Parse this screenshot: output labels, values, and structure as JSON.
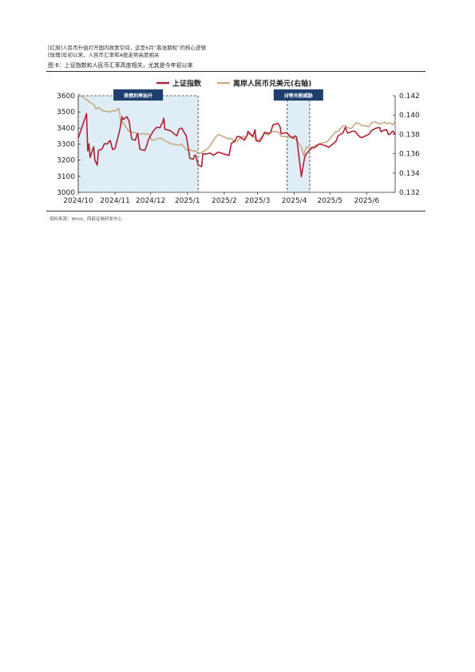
{
  "header": {
    "line1": "[红旗]人民币升值打开国内政策空间，这是6月“看涨期权”的核心逻辑",
    "line2": "[玫瑰]年初以来，人民币汇率和A股走势高度相关"
  },
  "figure": {
    "title": "图 6：上证指数和人民币汇率高度相关，尤其是今年初以来",
    "source": "资料来源：Wind，西部证券研发中心"
  },
  "chart_data": {
    "type": "line",
    "x_ticks": [
      "2024/10",
      "2024/11",
      "2024/12",
      "2025/1",
      "2025/2",
      "2025/3",
      "2025/4",
      "2025/5",
      "2025/6"
    ],
    "x_range": [
      "2024-10-01",
      "2025-06-25"
    ],
    "y_left": {
      "ticks": [
        "3000",
        "3100",
        "3200",
        "3300",
        "3400",
        "3500",
        "3600"
      ],
      "range": [
        3000,
        3600
      ]
    },
    "y_right": {
      "ticks": [
        "0.132",
        "0.134",
        "0.136",
        "0.138",
        "0.140",
        "0.142"
      ],
      "range": [
        0.132,
        0.142
      ]
    },
    "annotations": [
      {
        "label": "美债利率抬升",
        "start": "2024-10-01",
        "end": "2025-01-10",
        "color": "#dfeef6"
      },
      {
        "label": "对等关税威胁",
        "start": "2025-03-26",
        "end": "2025-04-14",
        "color": "#dfeef6"
      }
    ],
    "series": [
      {
        "name": "上证指数",
        "axis": "left",
        "color": "#b22034",
        "points": [
          [
            "2024-10-01",
            3336
          ],
          [
            "2024-10-08",
            3489
          ],
          [
            "2024-10-09",
            3258
          ],
          [
            "2024-10-10",
            3301
          ],
          [
            "2024-10-11",
            3217
          ],
          [
            "2024-10-14",
            3284
          ],
          [
            "2024-10-15",
            3201
          ],
          [
            "2024-10-17",
            3169
          ],
          [
            "2024-10-18",
            3261
          ],
          [
            "2024-10-21",
            3268
          ],
          [
            "2024-10-23",
            3302
          ],
          [
            "2024-10-25",
            3300
          ],
          [
            "2024-10-28",
            3322
          ],
          [
            "2024-10-30",
            3266
          ],
          [
            "2024-11-01",
            3272
          ],
          [
            "2024-11-05",
            3387
          ],
          [
            "2024-11-07",
            3470
          ],
          [
            "2024-11-08",
            3452
          ],
          [
            "2024-11-11",
            3470
          ],
          [
            "2024-11-13",
            3439
          ],
          [
            "2024-11-15",
            3331
          ],
          [
            "2024-11-18",
            3324
          ],
          [
            "2024-11-20",
            3367
          ],
          [
            "2024-11-22",
            3268
          ],
          [
            "2024-11-26",
            3260
          ],
          [
            "2024-11-28",
            3296
          ],
          [
            "2024-11-29",
            3326
          ],
          [
            "2024-12-03",
            3379
          ],
          [
            "2024-12-06",
            3404
          ],
          [
            "2024-12-09",
            3402
          ],
          [
            "2024-12-10",
            3422
          ],
          [
            "2024-12-11",
            3432
          ],
          [
            "2024-12-12",
            3461
          ],
          [
            "2024-12-13",
            3392
          ],
          [
            "2024-12-16",
            3386
          ],
          [
            "2024-12-18",
            3382
          ],
          [
            "2024-12-20",
            3368
          ],
          [
            "2024-12-23",
            3351
          ],
          [
            "2024-12-25",
            3393
          ],
          [
            "2024-12-27",
            3400
          ],
          [
            "2024-12-31",
            3351
          ],
          [
            "2025-01-02",
            3262
          ],
          [
            "2025-01-03",
            3211
          ],
          [
            "2025-01-06",
            3206
          ],
          [
            "2025-01-07",
            3229
          ],
          [
            "2025-01-08",
            3230
          ],
          [
            "2025-01-10",
            3169
          ],
          [
            "2025-01-13",
            3160
          ],
          [
            "2025-01-14",
            3240
          ],
          [
            "2025-01-16",
            3237
          ],
          [
            "2025-01-20",
            3244
          ],
          [
            "2025-01-23",
            3230
          ],
          [
            "2025-01-27",
            3250
          ],
          [
            "2025-02-05",
            3229
          ],
          [
            "2025-02-07",
            3303
          ],
          [
            "2025-02-10",
            3322
          ],
          [
            "2025-02-12",
            3346
          ],
          [
            "2025-02-14",
            3346
          ],
          [
            "2025-02-18",
            3324
          ],
          [
            "2025-02-20",
            3350
          ],
          [
            "2025-02-21",
            3379
          ],
          [
            "2025-02-25",
            3346
          ],
          [
            "2025-02-27",
            3389
          ],
          [
            "2025-02-28",
            3320
          ],
          [
            "2025-03-03",
            3316
          ],
          [
            "2025-03-05",
            3342
          ],
          [
            "2025-03-07",
            3373
          ],
          [
            "2025-03-10",
            3366
          ],
          [
            "2025-03-12",
            3371
          ],
          [
            "2025-03-14",
            3419
          ],
          [
            "2025-03-17",
            3426
          ],
          [
            "2025-03-18",
            3430
          ],
          [
            "2025-03-20",
            3408
          ],
          [
            "2025-03-21",
            3364
          ],
          [
            "2025-03-24",
            3370
          ],
          [
            "2025-03-26",
            3368
          ],
          [
            "2025-03-28",
            3351
          ],
          [
            "2025-03-31",
            3336
          ],
          [
            "2025-04-01",
            3348
          ],
          [
            "2025-04-02",
            3350
          ],
          [
            "2025-04-03",
            3342
          ],
          [
            "2025-04-07",
            3097
          ],
          [
            "2025-04-08",
            3145
          ],
          [
            "2025-04-09",
            3186
          ],
          [
            "2025-04-10",
            3223
          ],
          [
            "2025-04-11",
            3238
          ],
          [
            "2025-04-14",
            3263
          ],
          [
            "2025-04-16",
            3276
          ],
          [
            "2025-04-18",
            3277
          ],
          [
            "2025-04-22",
            3300
          ],
          [
            "2025-04-24",
            3297
          ],
          [
            "2025-04-28",
            3288
          ],
          [
            "2025-04-30",
            3279
          ],
          [
            "2025-05-06",
            3316
          ],
          [
            "2025-05-08",
            3352
          ],
          [
            "2025-05-12",
            3370
          ],
          [
            "2025-05-14",
            3404
          ],
          [
            "2025-05-16",
            3367
          ],
          [
            "2025-05-20",
            3380
          ],
          [
            "2025-05-22",
            3380
          ],
          [
            "2025-05-26",
            3346
          ],
          [
            "2025-05-28",
            3340
          ],
          [
            "2025-05-30",
            3347
          ],
          [
            "2025-06-03",
            3361
          ],
          [
            "2025-06-05",
            3384
          ],
          [
            "2025-06-09",
            3399
          ],
          [
            "2025-06-11",
            3402
          ],
          [
            "2025-06-12",
            3402
          ],
          [
            "2025-06-13",
            3377
          ],
          [
            "2025-06-16",
            3388
          ],
          [
            "2025-06-18",
            3388
          ],
          [
            "2025-06-19",
            3362
          ],
          [
            "2025-06-20",
            3359
          ],
          [
            "2025-06-23",
            3381
          ],
          [
            "2025-06-25",
            3360
          ]
        ]
      },
      {
        "name": "离岸人民币兑美元(右轴)",
        "axis": "right",
        "color": "#c9a983",
        "points": [
          [
            "2024-10-01",
            0.1422
          ],
          [
            "2024-10-03",
            0.142
          ],
          [
            "2024-10-08",
            0.1416
          ],
          [
            "2024-10-10",
            0.1414
          ],
          [
            "2024-10-14",
            0.1411
          ],
          [
            "2024-10-16",
            0.1406
          ],
          [
            "2024-10-18",
            0.1408
          ],
          [
            "2024-10-21",
            0.1405
          ],
          [
            "2024-10-23",
            0.1404
          ],
          [
            "2024-10-25",
            0.1404
          ],
          [
            "2024-10-28",
            0.1403
          ],
          [
            "2024-10-30",
            0.1405
          ],
          [
            "2024-11-01",
            0.1404
          ],
          [
            "2024-11-04",
            0.1407
          ],
          [
            "2024-11-05",
            0.1402
          ],
          [
            "2024-11-06",
            0.139
          ],
          [
            "2024-11-07",
            0.1393
          ],
          [
            "2024-11-08",
            0.1392
          ],
          [
            "2024-11-11",
            0.1386
          ],
          [
            "2024-11-13",
            0.1383
          ],
          [
            "2024-11-15",
            0.1382
          ],
          [
            "2024-11-18",
            0.1382
          ],
          [
            "2024-11-20",
            0.1381
          ],
          [
            "2024-11-22",
            0.138
          ],
          [
            "2024-11-25",
            0.1381
          ],
          [
            "2024-11-27",
            0.138
          ],
          [
            "2024-11-29",
            0.1381
          ],
          [
            "2024-12-02",
            0.1374
          ],
          [
            "2024-12-04",
            0.1374
          ],
          [
            "2024-12-06",
            0.1375
          ],
          [
            "2024-12-09",
            0.1376
          ],
          [
            "2024-12-11",
            0.1375
          ],
          [
            "2024-12-13",
            0.1373
          ],
          [
            "2024-12-16",
            0.1372
          ],
          [
            "2024-12-18",
            0.137
          ],
          [
            "2024-12-20",
            0.137
          ],
          [
            "2024-12-23",
            0.1369
          ],
          [
            "2024-12-25",
            0.1369
          ],
          [
            "2024-12-27",
            0.137
          ],
          [
            "2024-12-31",
            0.1364
          ],
          [
            "2025-01-03",
            0.1364
          ],
          [
            "2025-01-06",
            0.1363
          ],
          [
            "2025-01-08",
            0.1363
          ],
          [
            "2025-01-10",
            0.136
          ],
          [
            "2025-01-13",
            0.1361
          ],
          [
            "2025-01-15",
            0.1363
          ],
          [
            "2025-01-17",
            0.1364
          ],
          [
            "2025-01-20",
            0.1368
          ],
          [
            "2025-01-22",
            0.1372
          ],
          [
            "2025-01-24",
            0.1376
          ],
          [
            "2025-01-27",
            0.138
          ],
          [
            "2025-02-05",
            0.1375
          ],
          [
            "2025-02-07",
            0.1376
          ],
          [
            "2025-02-10",
            0.1372
          ],
          [
            "2025-02-12",
            0.1373
          ],
          [
            "2025-02-14",
            0.1376
          ],
          [
            "2025-02-17",
            0.1378
          ],
          [
            "2025-02-19",
            0.1376
          ],
          [
            "2025-02-21",
            0.138
          ],
          [
            "2025-02-24",
            0.138
          ],
          [
            "2025-02-26",
            0.1378
          ],
          [
            "2025-02-28",
            0.1374
          ],
          [
            "2025-03-03",
            0.1375
          ],
          [
            "2025-03-05",
            0.1378
          ],
          [
            "2025-03-07",
            0.1381
          ],
          [
            "2025-03-10",
            0.1379
          ],
          [
            "2025-03-12",
            0.1382
          ],
          [
            "2025-03-14",
            0.1383
          ],
          [
            "2025-03-17",
            0.1383
          ],
          [
            "2025-03-19",
            0.1382
          ],
          [
            "2025-03-21",
            0.1378
          ],
          [
            "2025-03-24",
            0.1378
          ],
          [
            "2025-03-26",
            0.1377
          ],
          [
            "2025-03-28",
            0.1377
          ],
          [
            "2025-03-31",
            0.1377
          ],
          [
            "2025-04-02",
            0.1375
          ],
          [
            "2025-04-04",
            0.1372
          ],
          [
            "2025-04-07",
            0.1367
          ],
          [
            "2025-04-08",
            0.1362
          ],
          [
            "2025-04-09",
            0.1358
          ],
          [
            "2025-04-10",
            0.1363
          ],
          [
            "2025-04-11",
            0.1367
          ],
          [
            "2025-04-14",
            0.1366
          ],
          [
            "2025-04-16",
            0.1367
          ],
          [
            "2025-04-18",
            0.1368
          ],
          [
            "2025-04-22",
            0.137
          ],
          [
            "2025-04-24",
            0.1371
          ],
          [
            "2025-04-28",
            0.1372
          ],
          [
            "2025-04-30",
            0.1374
          ],
          [
            "2025-05-06",
            0.1383
          ],
          [
            "2025-05-08",
            0.1383
          ],
          [
            "2025-05-12",
            0.1389
          ],
          [
            "2025-05-14",
            0.1389
          ],
          [
            "2025-05-16",
            0.1387
          ],
          [
            "2025-05-19",
            0.1386
          ],
          [
            "2025-05-21",
            0.1389
          ],
          [
            "2025-05-23",
            0.1392
          ],
          [
            "2025-05-26",
            0.1391
          ],
          [
            "2025-05-28",
            0.1389
          ],
          [
            "2025-05-30",
            0.1389
          ],
          [
            "2025-06-03",
            0.1388
          ],
          [
            "2025-06-05",
            0.1392
          ],
          [
            "2025-06-09",
            0.1393
          ],
          [
            "2025-06-11",
            0.1391
          ],
          [
            "2025-06-13",
            0.1391
          ],
          [
            "2025-06-16",
            0.1393
          ],
          [
            "2025-06-18",
            0.1391
          ],
          [
            "2025-06-20",
            0.1392
          ],
          [
            "2025-06-23",
            0.139
          ],
          [
            "2025-06-25",
            0.1394
          ]
        ]
      }
    ]
  }
}
